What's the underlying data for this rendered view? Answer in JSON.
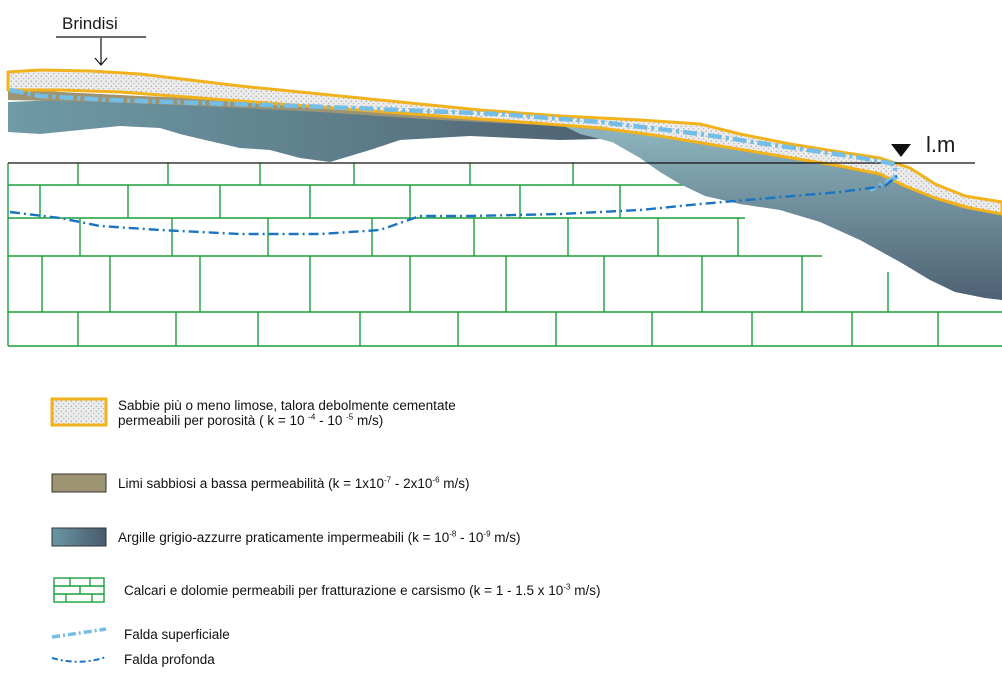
{
  "place": {
    "name": "Brindisi"
  },
  "sea_level": {
    "label": "l.m"
  },
  "legend": {
    "sands": {
      "line1": "Sabbie più o meno limose, talora debolmente cementate",
      "line2_pre": "permeabili per porosità ( k = 10 ",
      "line2_exp1": "-4",
      "line2_mid": " - 10 ",
      "line2_exp2": "-5",
      "line2_post": " m/s)"
    },
    "silts": {
      "pre": "Limi sabbiosi a bassa permeabilità (k = 1x10",
      "exp1": "-7",
      "mid": " - 2x10",
      "exp2": "-6",
      "post": " m/s)"
    },
    "clays": {
      "pre": "Argille grigio-azzurre praticamente impermeabili (k = 10",
      "exp1": "-8",
      "mid": " - 10",
      "exp2": "-9",
      "post": " m/s)"
    },
    "limestone": {
      "pre": "Calcari e dolomie permeabili per fratturazione e carsismo (k = 1 - 1.5 x 10",
      "exp1": "-3",
      "post": " m/s)"
    },
    "shallow_aquifer": "Falda superficiale",
    "deep_aquifer": "Falda profonda"
  },
  "colors": {
    "sand_fill": "#ececec",
    "sand_border": "#f2b21b",
    "silt": "#9c9472",
    "clay_light": "#7fa8b2",
    "clay_dark": "#4e6070",
    "limestone_line": "#1b9f3c",
    "shallow_aquifer": "#74bde6",
    "deep_aquifer": "#1a74c2"
  }
}
